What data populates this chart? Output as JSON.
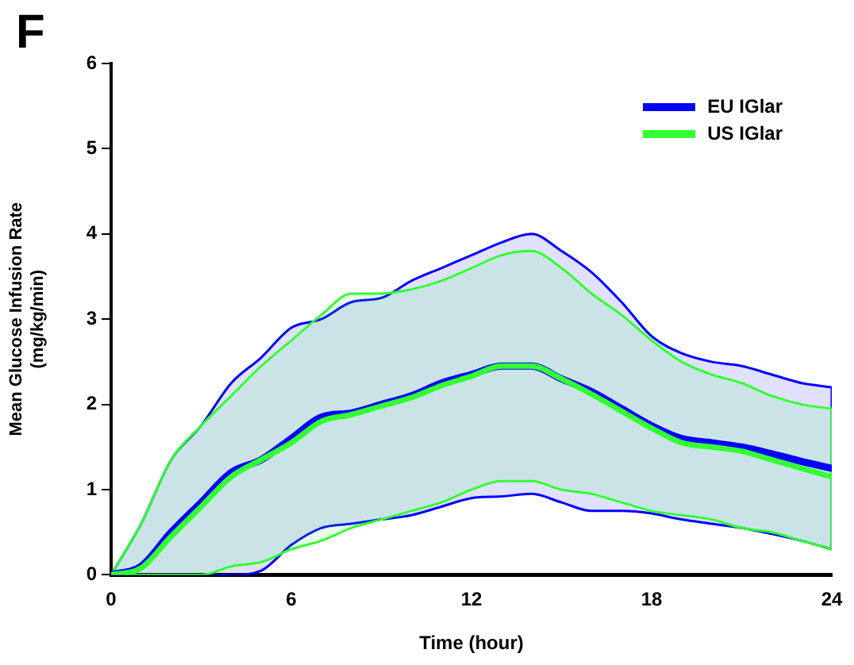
{
  "chart_data": {
    "type": "line",
    "xlabel": "Time (hour)",
    "ylabel": "Mean Glucose Infusion Rate\n(mg/kg/min)",
    "annotations": [
      "F"
    ],
    "x": [
      0,
      1,
      2,
      3,
      4,
      5,
      6,
      7,
      8,
      9,
      10,
      11,
      12,
      13,
      14,
      15,
      16,
      17,
      18,
      19,
      20,
      21,
      22,
      23,
      24
    ],
    "series": [
      {
        "name": "EU IGlar",
        "color": "#0000ff",
        "values": [
          0,
          0.1,
          0.5,
          0.85,
          1.2,
          1.35,
          1.6,
          1.85,
          1.9,
          2.0,
          2.1,
          2.25,
          2.35,
          2.45,
          2.45,
          2.3,
          2.15,
          1.95,
          1.75,
          1.6,
          1.55,
          1.5,
          1.42,
          1.33,
          1.25
        ],
        "lower": [
          0,
          0,
          0,
          0,
          0,
          0.05,
          0.35,
          0.55,
          0.6,
          0.65,
          0.7,
          0.8,
          0.9,
          0.92,
          0.95,
          0.85,
          0.75,
          0.75,
          0.72,
          0.65,
          0.6,
          0.55,
          0.48,
          0.4,
          0.3
        ],
        "upper": [
          0,
          0.6,
          1.35,
          1.75,
          2.25,
          2.55,
          2.9,
          3.0,
          3.2,
          3.25,
          3.45,
          3.6,
          3.75,
          3.9,
          4.0,
          3.8,
          3.55,
          3.2,
          2.8,
          2.6,
          2.5,
          2.45,
          2.35,
          2.25,
          2.2
        ]
      },
      {
        "name": "US IGlar",
        "color": "#33ff33",
        "values": [
          0,
          0.08,
          0.45,
          0.8,
          1.15,
          1.35,
          1.55,
          1.8,
          1.88,
          1.98,
          2.08,
          2.22,
          2.33,
          2.45,
          2.45,
          2.3,
          2.12,
          1.92,
          1.72,
          1.55,
          1.5,
          1.45,
          1.35,
          1.25,
          1.15
        ],
        "lower": [
          0,
          0,
          0,
          0,
          0.1,
          0.15,
          0.3,
          0.4,
          0.55,
          0.65,
          0.75,
          0.85,
          1.0,
          1.1,
          1.1,
          1.0,
          0.95,
          0.85,
          0.75,
          0.7,
          0.65,
          0.55,
          0.5,
          0.4,
          0.3
        ],
        "upper": [
          0,
          0.6,
          1.35,
          1.75,
          2.1,
          2.45,
          2.75,
          3.05,
          3.3,
          3.3,
          3.35,
          3.45,
          3.6,
          3.75,
          3.8,
          3.6,
          3.3,
          3.05,
          2.75,
          2.5,
          2.35,
          2.25,
          2.1,
          2.0,
          1.95
        ]
      }
    ],
    "xlim": [
      0,
      24
    ],
    "xticks": [
      0,
      6,
      12,
      18,
      24
    ],
    "ylim": [
      0,
      6
    ],
    "yticks": [
      0,
      1,
      2,
      3,
      4,
      5,
      6
    ],
    "grid": false,
    "legend": "top right",
    "marker": "none",
    "line_style": "solid"
  }
}
